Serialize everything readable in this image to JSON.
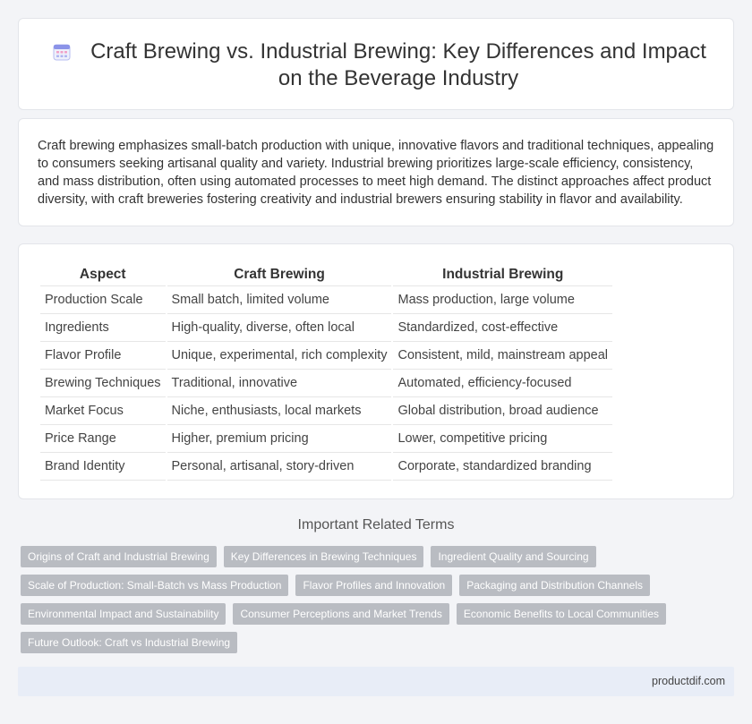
{
  "header": {
    "title": "Craft Brewing vs. Industrial Brewing: Key Differences and Impact on the Beverage Industry",
    "icon": "calendar-icon"
  },
  "intro": {
    "text": "Craft brewing emphasizes small-batch production with unique, innovative flavors and traditional techniques, appealing to consumers seeking artisanal quality and variety. Industrial brewing prioritizes large-scale efficiency, consistency, and mass distribution, often using automated processes to meet high demand. The distinct approaches affect product diversity, with craft breweries fostering creativity and industrial brewers ensuring stability in flavor and availability."
  },
  "table": {
    "headers": [
      "Aspect",
      "Craft Brewing",
      "Industrial Brewing"
    ],
    "rows": [
      [
        "Production Scale",
        "Small batch, limited volume",
        "Mass production, large volume"
      ],
      [
        "Ingredients",
        "High-quality, diverse, often local",
        "Standardized, cost-effective"
      ],
      [
        "Flavor Profile",
        "Unique, experimental, rich complexity",
        "Consistent, mild, mainstream appeal"
      ],
      [
        "Brewing Techniques",
        "Traditional, innovative",
        "Automated, efficiency-focused"
      ],
      [
        "Market Focus",
        "Niche, enthusiasts, local markets",
        "Global distribution, broad audience"
      ],
      [
        "Price Range",
        "Higher, premium pricing",
        "Lower, competitive pricing"
      ],
      [
        "Brand Identity",
        "Personal, artisanal, story-driven",
        "Corporate, standardized branding"
      ]
    ]
  },
  "related": {
    "heading": "Important Related Terms",
    "tags": [
      "Origins of Craft and Industrial Brewing",
      "Key Differences in Brewing Techniques",
      "Ingredient Quality and Sourcing",
      "Scale of Production: Small-Batch vs Mass Production",
      "Flavor Profiles and Innovation",
      "Packaging and Distribution Channels",
      "Environmental Impact and Sustainability",
      "Consumer Perceptions and Market Trends",
      "Economic Benefits to Local Communities",
      "Future Outlook: Craft vs Industrial Brewing"
    ]
  },
  "footer": {
    "site": "productdif.com"
  }
}
